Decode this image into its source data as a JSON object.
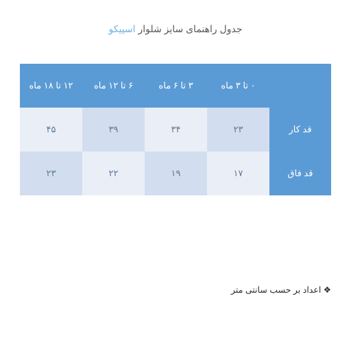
{
  "title": {
    "prefix": "جدول راهنمای سایز شلوار ",
    "brand": "اسپیکو"
  },
  "columns": [
    "۰ تا ۳ ماه",
    "۳ تا ۶ ماه",
    "۶ تا ۱۲ ماه",
    "۱۲ تا ۱۸ ماه"
  ],
  "rows": [
    {
      "label": "قد کار",
      "values": [
        "۲۳",
        "۳۴",
        "۳۹",
        "۴۵"
      ]
    },
    {
      "label": "قد فاق",
      "values": [
        "۱۷",
        "۱۹",
        "۲۲",
        "۲۳"
      ]
    }
  ],
  "cell_colors": [
    [
      "#d2deef",
      "#eaeff7",
      "#d2deef",
      "#eaeff7"
    ],
    [
      "#eaeff7",
      "#d2deef",
      "#eaeff7",
      "#d2deef"
    ]
  ],
  "value_text_color": "#5e7999",
  "note": "اعداد بر حسب سانتی متر",
  "palette": {
    "header_bg": "#5b9bd5",
    "header_text": "#ffffff",
    "brand_text": "#71b4e0",
    "title_text": "#595959"
  }
}
